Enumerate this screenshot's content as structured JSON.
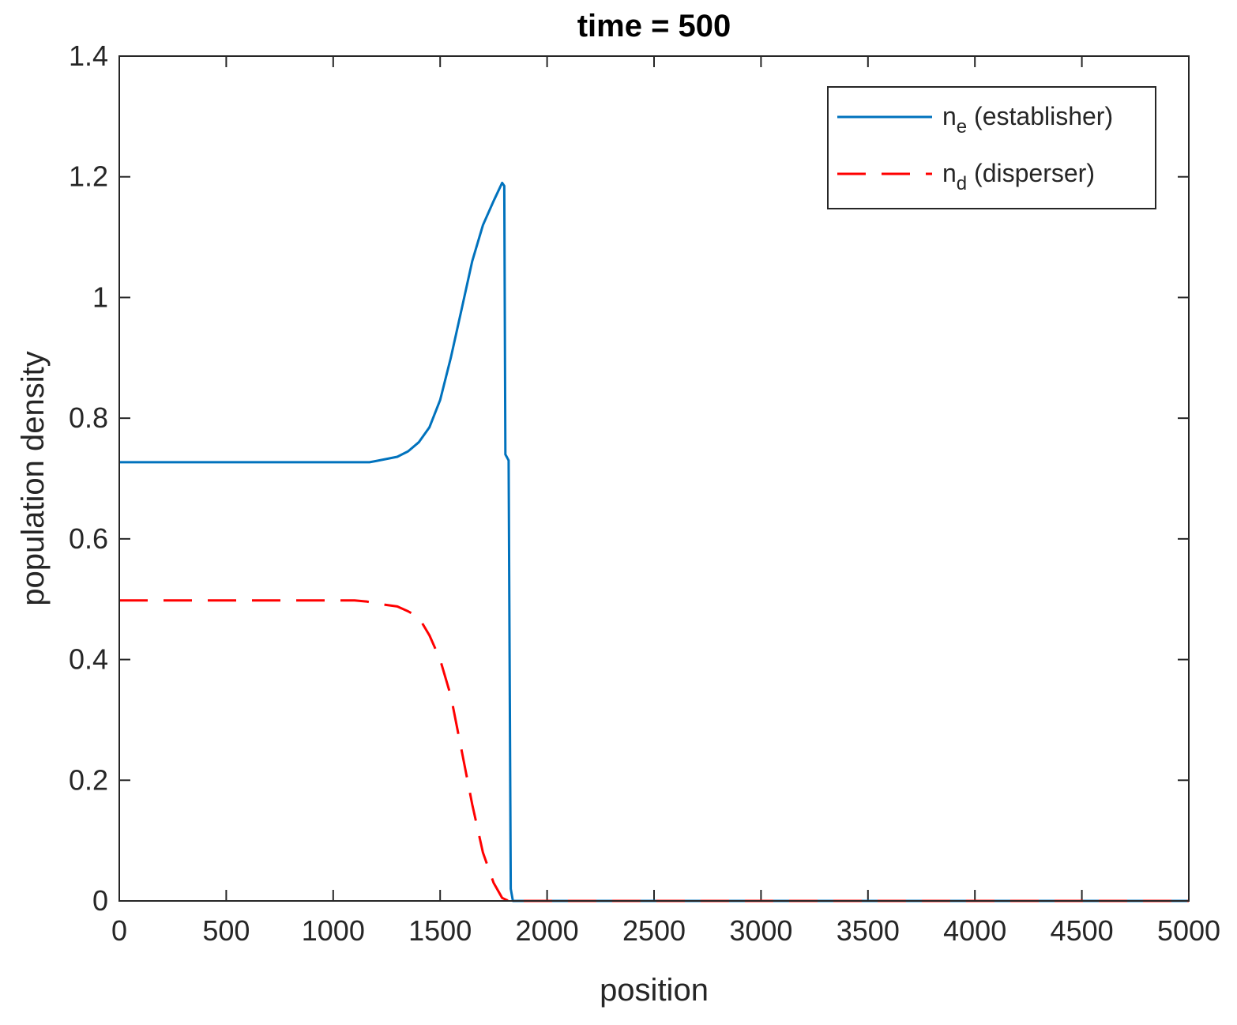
{
  "chart_data": {
    "type": "line",
    "title": "time = 500",
    "xlabel": "position",
    "ylabel": "population density",
    "xlim": [
      0,
      5000
    ],
    "ylim": [
      0,
      1.4
    ],
    "xticks": [
      "0",
      "500",
      "1000",
      "1500",
      "2000",
      "2500",
      "3000",
      "3500",
      "4000",
      "4500",
      "5000"
    ],
    "yticks": [
      "0",
      "0.2",
      "0.4",
      "0.6",
      "0.8",
      "1",
      "1.2",
      "1.4"
    ],
    "grid": false,
    "legend_position": "top-right",
    "series": [
      {
        "name_main": "n",
        "name_sub": "e",
        "name_rest": " (establisher)",
        "color": "#0072BD",
        "style": "solid",
        "points": [
          [
            0,
            0.727
          ],
          [
            1000,
            0.727
          ],
          [
            1170,
            0.727
          ],
          [
            1200,
            0.729
          ],
          [
            1300,
            0.736
          ],
          [
            1350,
            0.745
          ],
          [
            1400,
            0.76
          ],
          [
            1450,
            0.785
          ],
          [
            1500,
            0.83
          ],
          [
            1550,
            0.9
          ],
          [
            1600,
            0.98
          ],
          [
            1650,
            1.06
          ],
          [
            1700,
            1.12
          ],
          [
            1750,
            1.16
          ],
          [
            1790,
            1.19
          ],
          [
            1800,
            1.185
          ],
          [
            1805,
            0.74
          ],
          [
            1820,
            0.73
          ],
          [
            1830,
            0.02
          ],
          [
            1840,
            0
          ],
          [
            5000,
            0
          ]
        ]
      },
      {
        "name_main": "n",
        "name_sub": "d",
        "name_rest": " (disperser)",
        "color": "#FF0000",
        "style": "dashed",
        "points": [
          [
            0,
            0.498
          ],
          [
            1100,
            0.498
          ],
          [
            1160,
            0.496
          ],
          [
            1200,
            0.493
          ],
          [
            1300,
            0.488
          ],
          [
            1350,
            0.48
          ],
          [
            1400,
            0.47
          ],
          [
            1450,
            0.44
          ],
          [
            1500,
            0.4
          ],
          [
            1550,
            0.34
          ],
          [
            1600,
            0.25
          ],
          [
            1650,
            0.16
          ],
          [
            1700,
            0.08
          ],
          [
            1750,
            0.03
          ],
          [
            1790,
            0.005
          ],
          [
            1820,
            0
          ],
          [
            5000,
            0
          ]
        ]
      }
    ]
  }
}
